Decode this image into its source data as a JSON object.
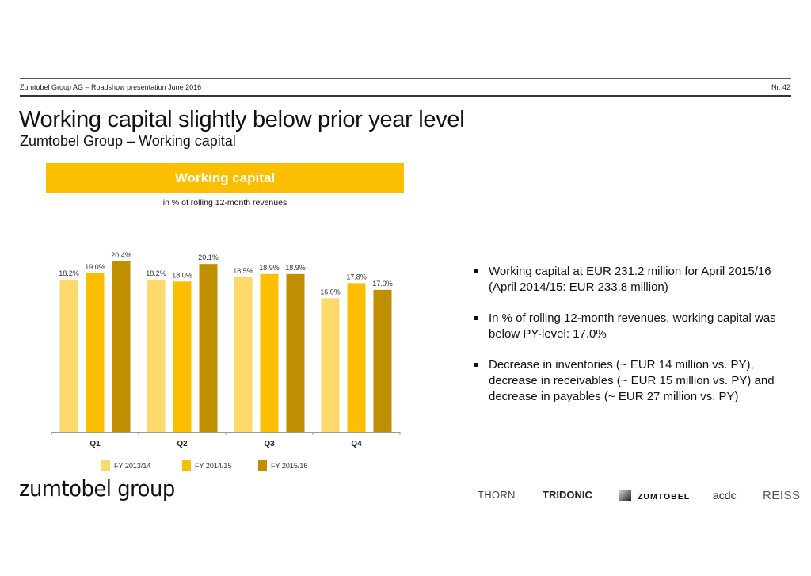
{
  "header": {
    "left": "Zumtobel Group AG – Roadshow presentation June 2016",
    "right": "Nr. 42"
  },
  "title": "Working capital slightly below prior year level",
  "subtitle": "Zumtobel Group – Working capital",
  "chart_banner": "Working capital",
  "chart_data": {
    "type": "bar",
    "title": "Working capital",
    "subtitle": "in % of rolling 12-month revenues",
    "categories": [
      "Q1",
      "Q2",
      "Q3",
      "Q4"
    ],
    "series": [
      {
        "name": "FY 2013/14",
        "color": "#fdd86a",
        "values": [
          18.2,
          18.2,
          18.5,
          16.0
        ],
        "labels": [
          "18.2%",
          "18.2%",
          "18.5%",
          "16.0%"
        ]
      },
      {
        "name": "FY 2014/15",
        "color": "#fbbf00",
        "values": [
          19.0,
          18.0,
          18.9,
          17.8
        ],
        "labels": [
          "19.0%",
          "18.0%",
          "18.9%",
          "17.8%"
        ]
      },
      {
        "name": "FY 2015/16",
        "color": "#bf8f00",
        "values": [
          20.4,
          20.1,
          18.9,
          17.0
        ],
        "labels": [
          "20.4%",
          "20.1%",
          "18.9%",
          "17.0%"
        ]
      }
    ],
    "xlabel": "",
    "ylabel": "",
    "ylim": [
      0,
      20.4
    ],
    "grid": false,
    "legend": "bottom"
  },
  "bullets": [
    "Working capital at EUR 231.2 million for April 2015/16 (April 2014/15: EUR 233.8 million)",
    "In % of rolling 12-month revenues, working capital was below PY-level: 17.0%",
    "Decrease in inventories (~ EUR 14 million vs. PY), decrease in receivables (~ EUR 15 million vs. PY) and decrease in payables (~ EUR 27 million vs. PY)"
  ],
  "footer": {
    "logo": "zumtobel group",
    "brands": [
      "THORN",
      "TRIDONIC",
      "ZUMTOBEL",
      "acdc",
      "REISS"
    ]
  }
}
